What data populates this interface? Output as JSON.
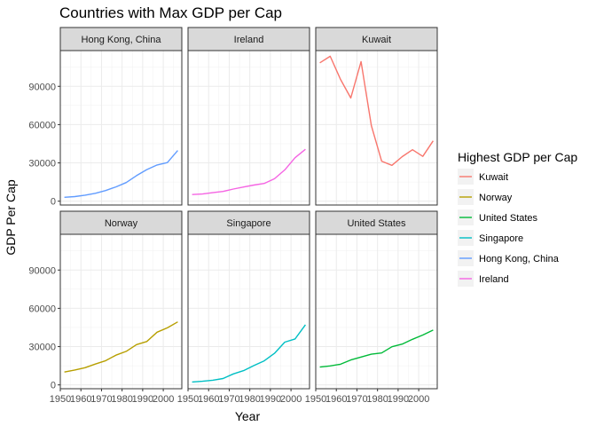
{
  "chart_data": {
    "type": "line",
    "title": "Countries with Max GDP per Cap",
    "xlabel": "Year",
    "ylabel": "GDP Per Cap",
    "xlim": [
      1950,
      2009
    ],
    "ylim": [
      -3000,
      118000
    ],
    "x_ticks": [
      1950,
      1960,
      1970,
      1980,
      1990,
      2000
    ],
    "y_ticks": [
      0,
      30000,
      60000,
      90000
    ],
    "y_tick_labels": [
      "0",
      "30000",
      "60000",
      "90000"
    ],
    "x": [
      1952,
      1957,
      1962,
      1967,
      1972,
      1977,
      1982,
      1987,
      1992,
      1997,
      2002,
      2007
    ],
    "legend": {
      "title": "Highest GDP per Cap",
      "position": "right",
      "entries": [
        "Kuwait",
        "Norway",
        "United States",
        "Singapore",
        "Hong Kong, China",
        "Ireland"
      ]
    },
    "series": [
      {
        "name": "Hong Kong, China",
        "color": "#619CFF",
        "values": [
          3054,
          3629,
          4693,
          6198,
          8316,
          11186,
          14561,
          20038,
          24757,
          28378,
          30209,
          39725
        ]
      },
      {
        "name": "Ireland",
        "color": "#F564E3",
        "values": [
          5211,
          5599,
          6632,
          7656,
          9531,
          11151,
          12618,
          13873,
          17559,
          24522,
          34077,
          40676
        ]
      },
      {
        "name": "Kuwait",
        "color": "#F8766D",
        "values": [
          108382,
          113523,
          95458,
          80895,
          109348,
          59265,
          31354,
          28118,
          34933,
          40301,
          35110,
          47307
        ]
      },
      {
        "name": "Norway",
        "color": "#B79F00",
        "values": [
          10095,
          11654,
          13450,
          16362,
          18965,
          23311,
          26299,
          31541,
          33966,
          41283,
          44684,
          49357
        ]
      },
      {
        "name": "Singapore",
        "color": "#00BFC4",
        "values": [
          2315,
          2844,
          3675,
          4978,
          8597,
          11210,
          15169,
          18862,
          24769,
          33519,
          36023,
          47143
        ]
      },
      {
        "name": "United States",
        "color": "#00BA38",
        "values": [
          13990,
          14847,
          16173,
          19530,
          21806,
          24073,
          25010,
          29884,
          32004,
          35767,
          39097,
          42952
        ]
      }
    ]
  }
}
